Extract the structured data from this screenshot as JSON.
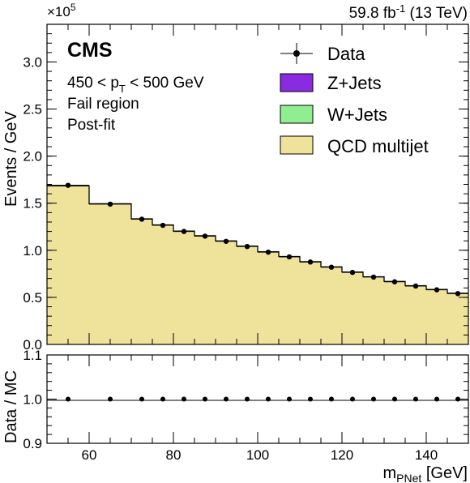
{
  "header": {
    "lumi_text": "59.8 fb",
    "lumi_exp": "-1",
    "energy_text": " (13 TeV)",
    "multiplier": "×10",
    "multiplier_exp": "5"
  },
  "labels": {
    "cms": "CMS",
    "pt_cut_pre": "450 < p",
    "pt_cut_sub": "T",
    "pt_cut_post": " < 500 GeV",
    "region": "Fail region",
    "fit": "Post-fit"
  },
  "colors": {
    "zjets": "#8a2be2",
    "wjets": "#90ee90",
    "qcd": "#efe29a",
    "data": "#000000"
  },
  "chart_data": [
    {
      "type": "bar",
      "subtype": "stacked-step-histogram",
      "xlabel": "",
      "ylabel": "Events / GeV",
      "y_multiplier": "×10^5",
      "xlim": [
        50,
        150
      ],
      "ylim": [
        0.0,
        3.4
      ],
      "yticks": [
        "0.0",
        "0.5",
        "1.0",
        "1.5",
        "2.0",
        "2.5",
        "3.0"
      ],
      "bin_edges": [
        50,
        60,
        70,
        75,
        80,
        85,
        90,
        95,
        100,
        105,
        110,
        115,
        120,
        125,
        130,
        135,
        140,
        145,
        150
      ],
      "series": [
        {
          "name": "Z+Jets",
          "values": [
            0.002,
            0.002,
            0.002,
            0.002,
            0.002,
            0.002,
            0.002,
            0.002,
            0.002,
            0.002,
            0.002,
            0.002,
            0.002,
            0.002,
            0.002,
            0.002,
            0.002,
            0.002
          ]
        },
        {
          "name": "W+Jets",
          "values": [
            0.002,
            0.002,
            0.002,
            0.002,
            0.002,
            0.002,
            0.002,
            0.002,
            0.002,
            0.002,
            0.002,
            0.002,
            0.002,
            0.002,
            0.002,
            0.002,
            0.002,
            0.002
          ]
        },
        {
          "name": "QCD multijet",
          "values": [
            1.68,
            1.49,
            1.33,
            1.265,
            1.2,
            1.15,
            1.095,
            1.04,
            0.98,
            0.93,
            0.875,
            0.82,
            0.765,
            0.715,
            0.665,
            0.62,
            0.58,
            0.54
          ]
        }
      ],
      "data": {
        "name": "Data",
        "x": [
          55,
          65,
          72.5,
          77.5,
          82.5,
          87.5,
          92.5,
          97.5,
          102.5,
          107.5,
          112.5,
          117.5,
          122.5,
          127.5,
          132.5,
          137.5,
          142.5,
          147.5
        ],
        "y": [
          1.69,
          1.49,
          1.33,
          1.265,
          1.2,
          1.15,
          1.095,
          1.04,
          0.98,
          0.93,
          0.875,
          0.82,
          0.765,
          0.715,
          0.665,
          0.62,
          0.58,
          0.54
        ]
      },
      "legend": "top-right",
      "grid": false
    },
    {
      "type": "scatter",
      "xlabel": "m",
      "xlabel_sub": "PNet",
      "xlabel_unit": " [GeV]",
      "ylabel": "Data / MC",
      "xlim": [
        50,
        150
      ],
      "ylim": [
        0.9,
        1.1
      ],
      "xticks": [
        "60",
        "80",
        "100",
        "120",
        "140"
      ],
      "yticks": [
        "0.9",
        "1.0",
        "1.1"
      ],
      "x": [
        55,
        65,
        72.5,
        77.5,
        82.5,
        87.5,
        92.5,
        97.5,
        102.5,
        107.5,
        112.5,
        117.5,
        122.5,
        127.5,
        132.5,
        137.5,
        142.5,
        147.5
      ],
      "y": [
        1.0,
        1.0,
        1.0,
        1.0,
        1.0,
        1.0,
        1.0,
        1.0,
        1.0,
        1.0,
        1.0,
        1.0,
        1.0,
        1.0,
        1.0,
        1.0,
        1.0,
        1.0
      ],
      "grid": false
    }
  ]
}
